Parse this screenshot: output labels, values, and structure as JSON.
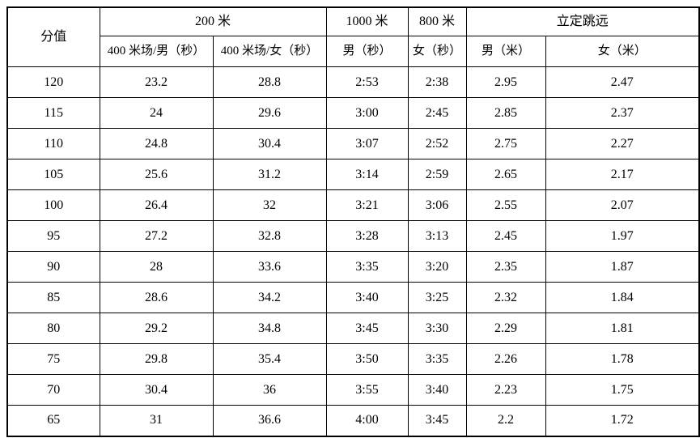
{
  "page": {
    "background_color": "#ffffff",
    "border_color": "#000000",
    "text_color": "#000000"
  },
  "table": {
    "header": {
      "score": "分值",
      "groups": [
        {
          "label": "200 米",
          "colspan": 2
        },
        {
          "label": "1000 米",
          "colspan": 1
        },
        {
          "label": "800 米",
          "colspan": 1
        },
        {
          "label": "立定跳远",
          "colspan": 2
        }
      ],
      "subheaders": [
        "400 米场/男（秒）",
        "400 米场/女（秒）",
        "男（秒）",
        "女（秒）",
        "男（米）",
        "女（米）"
      ]
    },
    "rows": [
      {
        "score": "120",
        "values": [
          "23.2",
          "28.8",
          "2:53",
          "2:38",
          "2.95",
          "2.47"
        ]
      },
      {
        "score": "115",
        "values": [
          "24",
          "29.6",
          "3:00",
          "2:45",
          "2.85",
          "2.37"
        ]
      },
      {
        "score": "110",
        "values": [
          "24.8",
          "30.4",
          "3:07",
          "2:52",
          "2.75",
          "2.27"
        ]
      },
      {
        "score": "105",
        "values": [
          "25.6",
          "31.2",
          "3:14",
          "2:59",
          "2.65",
          "2.17"
        ]
      },
      {
        "score": "100",
        "values": [
          "26.4",
          "32",
          "3:21",
          "3:06",
          "2.55",
          "2.07"
        ]
      },
      {
        "score": "95",
        "values": [
          "27.2",
          "32.8",
          "3:28",
          "3:13",
          "2.45",
          "1.97"
        ]
      },
      {
        "score": "90",
        "values": [
          "28",
          "33.6",
          "3:35",
          "3:20",
          "2.35",
          "1.87"
        ]
      },
      {
        "score": "85",
        "values": [
          "28.6",
          "34.2",
          "3:40",
          "3:25",
          "2.32",
          "1.84"
        ]
      },
      {
        "score": "80",
        "values": [
          "29.2",
          "34.8",
          "3:45",
          "3:30",
          "2.29",
          "1.81"
        ]
      },
      {
        "score": "75",
        "values": [
          "29.8",
          "35.4",
          "3:50",
          "3:35",
          "2.26",
          "1.78"
        ]
      },
      {
        "score": "70",
        "values": [
          "30.4",
          "36",
          "3:55",
          "3:40",
          "2.23",
          "1.75"
        ]
      },
      {
        "score": "65",
        "values": [
          "31",
          "36.6",
          "4:00",
          "3:45",
          "2.2",
          "1.72"
        ]
      }
    ]
  }
}
